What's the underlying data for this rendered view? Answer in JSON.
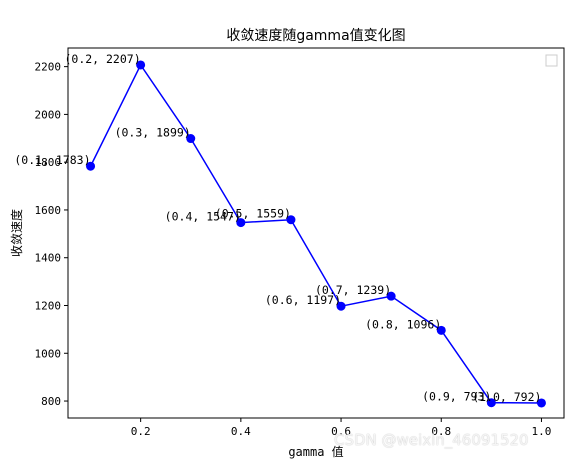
{
  "chart_data": {
    "type": "line",
    "title": "收敛速度随gamma值变化图",
    "xlabel": "gamma 值",
    "ylabel": "收敛速度",
    "x": [
      0.1,
      0.2,
      0.3,
      0.4,
      0.5,
      0.6,
      0.7,
      0.8,
      0.9,
      1.0
    ],
    "series": [
      {
        "values": [
          1783,
          2207,
          1899,
          1547,
          1559,
          1197,
          1239,
          1096,
          793,
          792
        ],
        "color": "#0000ff"
      }
    ],
    "point_labels": [
      "(0.1, 1783)",
      "(0.2, 2207)",
      "(0.3, 1899)",
      "(0.4, 1547)",
      "(0.5, 1559)",
      "(0.6, 1197)",
      "(0.7, 1239)",
      "(0.8, 1096)",
      "(0.9, 793)",
      "(1.0, 792)"
    ],
    "xticks": [
      "0.2",
      "0.4",
      "0.6",
      "0.8",
      "1.0"
    ],
    "xtick_values": [
      0.2,
      0.4,
      0.6,
      0.8,
      1.0
    ],
    "yticks": [
      "800",
      "1000",
      "1200",
      "1400",
      "1600",
      "1800",
      "2000",
      "2200"
    ],
    "ytick_values": [
      800,
      1000,
      1200,
      1400,
      1600,
      1800,
      2000,
      2200
    ],
    "xlim": [
      0.055,
      1.045
    ],
    "ylim": [
      729,
      2278
    ],
    "grid": false,
    "legend": "top-right"
  },
  "watermark": "CSDN @weixin_46091520"
}
